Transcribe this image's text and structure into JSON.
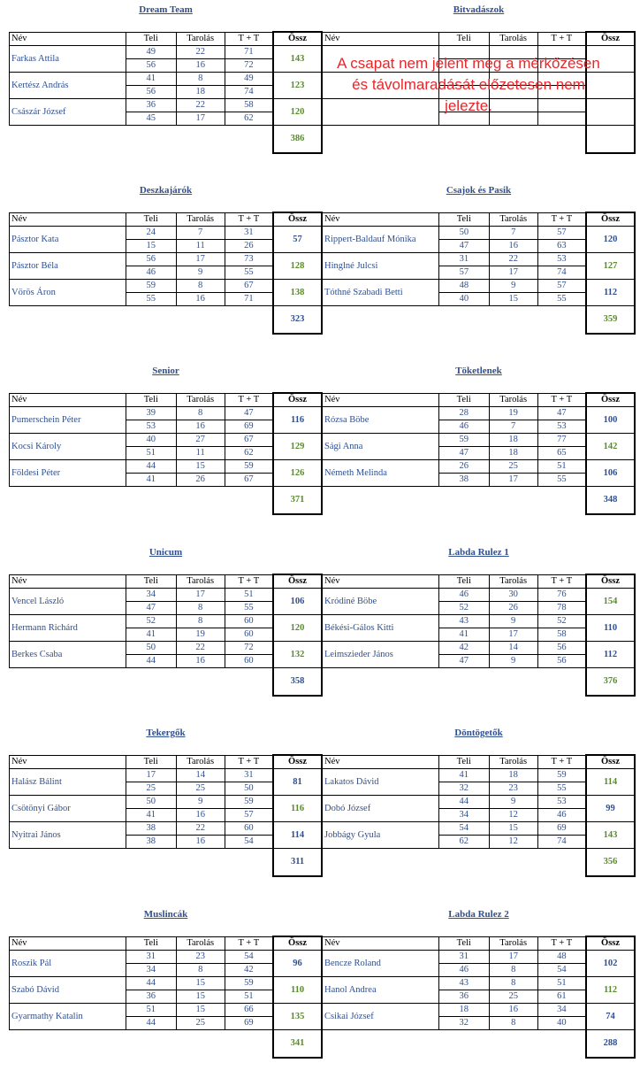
{
  "headers": {
    "name": "Név",
    "teli": "Teli",
    "tarolas": "Tarolás",
    "tt": "T + T",
    "ossz": "Össz"
  },
  "absent_notice": "A csapat nem jelent meg a mérkőzésen és távolmaradását előzetesen nem jelezte.",
  "teams": [
    {
      "title": "Dream Team",
      "total": "386",
      "total_color": "green",
      "players": [
        {
          "name": "Farkas Attila",
          "rows": [
            [
              "49",
              "22",
              "71"
            ],
            [
              "56",
              "16",
              "72"
            ]
          ],
          "ossz": "143",
          "color": "green"
        },
        {
          "name": "Kertész András",
          "rows": [
            [
              "41",
              "8",
              "49"
            ],
            [
              "56",
              "18",
              "74"
            ]
          ],
          "ossz": "123",
          "color": "green"
        },
        {
          "name": "Császár József",
          "rows": [
            [
              "36",
              "22",
              "58"
            ],
            [
              "45",
              "17",
              "62"
            ]
          ],
          "ossz": "120",
          "color": "green"
        }
      ]
    },
    {
      "title": "Bitvadászok",
      "total": "",
      "total_color": "green",
      "absent": true,
      "players": [
        {
          "name": "",
          "rows": [
            [
              "",
              "",
              ""
            ],
            [
              "",
              "",
              ""
            ]
          ],
          "ossz": "",
          "color": "green"
        },
        {
          "name": "",
          "rows": [
            [
              "",
              "",
              ""
            ],
            [
              "",
              "",
              ""
            ]
          ],
          "ossz": "",
          "color": "green"
        },
        {
          "name": "",
          "rows": [
            [
              "",
              "",
              ""
            ],
            [
              "",
              "",
              ""
            ]
          ],
          "ossz": "",
          "color": "green"
        }
      ]
    },
    {
      "title": "Deszkajárók",
      "total": "323",
      "total_color": "blue",
      "players": [
        {
          "name": "Pásztor Kata",
          "rows": [
            [
              "24",
              "7",
              "31"
            ],
            [
              "15",
              "11",
              "26"
            ]
          ],
          "ossz": "57",
          "color": "blue"
        },
        {
          "name": "Pásztor Béla",
          "rows": [
            [
              "56",
              "17",
              "73"
            ],
            [
              "46",
              "9",
              "55"
            ]
          ],
          "ossz": "128",
          "color": "green"
        },
        {
          "name": "Vörös Áron",
          "rows": [
            [
              "59",
              "8",
              "67"
            ],
            [
              "55",
              "16",
              "71"
            ]
          ],
          "ossz": "138",
          "color": "green"
        }
      ]
    },
    {
      "title": "Csajok és Pasik",
      "total": "359",
      "total_color": "green",
      "players": [
        {
          "name": "Rippert-Baldauf Mónika",
          "rows": [
            [
              "50",
              "7",
              "57"
            ],
            [
              "47",
              "16",
              "63"
            ]
          ],
          "ossz": "120",
          "color": "blue"
        },
        {
          "name": "Hinglné Julcsi",
          "rows": [
            [
              "31",
              "22",
              "53"
            ],
            [
              "57",
              "17",
              "74"
            ]
          ],
          "ossz": "127",
          "color": "green"
        },
        {
          "name": "Tóthné Szabadi Betti",
          "rows": [
            [
              "48",
              "9",
              "57"
            ],
            [
              "40",
              "15",
              "55"
            ]
          ],
          "ossz": "112",
          "color": "blue"
        }
      ]
    },
    {
      "title": "Senior",
      "total": "371",
      "total_color": "green",
      "players": [
        {
          "name": "Pumerschein Péter",
          "rows": [
            [
              "39",
              "8",
              "47"
            ],
            [
              "53",
              "16",
              "69"
            ]
          ],
          "ossz": "116",
          "color": "blue"
        },
        {
          "name": "Kocsi Károly",
          "rows": [
            [
              "40",
              "27",
              "67"
            ],
            [
              "51",
              "11",
              "62"
            ]
          ],
          "ossz": "129",
          "color": "green"
        },
        {
          "name": "Földesi Péter",
          "rows": [
            [
              "44",
              "15",
              "59"
            ],
            [
              "41",
              "26",
              "67"
            ]
          ],
          "ossz": "126",
          "color": "green"
        }
      ]
    },
    {
      "title": "Töketlenek",
      "total": "348",
      "total_color": "blue",
      "players": [
        {
          "name": "Rózsa Böbe",
          "rows": [
            [
              "28",
              "19",
              "47"
            ],
            [
              "46",
              "7",
              "53"
            ]
          ],
          "ossz": "100",
          "color": "blue"
        },
        {
          "name": "Sági Anna",
          "rows": [
            [
              "59",
              "18",
              "77"
            ],
            [
              "47",
              "18",
              "65"
            ]
          ],
          "ossz": "142",
          "color": "green"
        },
        {
          "name": "Németh Melinda",
          "rows": [
            [
              "26",
              "25",
              "51"
            ],
            [
              "38",
              "17",
              "55"
            ]
          ],
          "ossz": "106",
          "color": "blue"
        }
      ]
    },
    {
      "title": "Unicum",
      "total": "358",
      "total_color": "blue",
      "players": [
        {
          "name": "Vencel László",
          "rows": [
            [
              "34",
              "17",
              "51"
            ],
            [
              "47",
              "8",
              "55"
            ]
          ],
          "ossz": "106",
          "color": "blue"
        },
        {
          "name": "Hermann Richárd",
          "rows": [
            [
              "52",
              "8",
              "60"
            ],
            [
              "41",
              "19",
              "60"
            ]
          ],
          "ossz": "120",
          "color": "green"
        },
        {
          "name": "Berkes Csaba",
          "rows": [
            [
              "50",
              "22",
              "72"
            ],
            [
              "44",
              "16",
              "60"
            ]
          ],
          "ossz": "132",
          "color": "green"
        }
      ]
    },
    {
      "title": "Labda Rulez 1",
      "total": "376",
      "total_color": "green",
      "players": [
        {
          "name": "Kródiné Böbe",
          "rows": [
            [
              "46",
              "30",
              "76"
            ],
            [
              "52",
              "26",
              "78"
            ]
          ],
          "ossz": "154",
          "color": "green"
        },
        {
          "name": "Békési-Gálos Kitti",
          "rows": [
            [
              "43",
              "9",
              "52"
            ],
            [
              "41",
              "17",
              "58"
            ]
          ],
          "ossz": "110",
          "color": "blue"
        },
        {
          "name": "Leimszieder János",
          "rows": [
            [
              "42",
              "14",
              "56"
            ],
            [
              "47",
              "9",
              "56"
            ]
          ],
          "ossz": "112",
          "color": "blue"
        }
      ]
    },
    {
      "title": "Tekergők",
      "total": "311",
      "total_color": "blue",
      "players": [
        {
          "name": "Halász Bálint",
          "rows": [
            [
              "17",
              "14",
              "31"
            ],
            [
              "25",
              "25",
              "50"
            ]
          ],
          "ossz": "81",
          "color": "blue"
        },
        {
          "name": "Csötönyi Gábor",
          "rows": [
            [
              "50",
              "9",
              "59"
            ],
            [
              "41",
              "16",
              "57"
            ]
          ],
          "ossz": "116",
          "color": "green"
        },
        {
          "name": "Nyitrai János",
          "rows": [
            [
              "38",
              "22",
              "60"
            ],
            [
              "38",
              "16",
              "54"
            ]
          ],
          "ossz": "114",
          "color": "blue"
        }
      ]
    },
    {
      "title": "Döntögetők",
      "total": "356",
      "total_color": "green",
      "players": [
        {
          "name": "Lakatos Dávid",
          "rows": [
            [
              "41",
              "18",
              "59"
            ],
            [
              "32",
              "23",
              "55"
            ]
          ],
          "ossz": "114",
          "color": "green"
        },
        {
          "name": "Dobó József",
          "rows": [
            [
              "44",
              "9",
              "53"
            ],
            [
              "34",
              "12",
              "46"
            ]
          ],
          "ossz": "99",
          "color": "blue"
        },
        {
          "name": "Jobbágy Gyula",
          "rows": [
            [
              "54",
              "15",
              "69"
            ],
            [
              "62",
              "12",
              "74"
            ]
          ],
          "ossz": "143",
          "color": "green"
        }
      ]
    },
    {
      "title": "Muslincák",
      "total": "341",
      "total_color": "green",
      "players": [
        {
          "name": "Roszik Pál",
          "rows": [
            [
              "31",
              "23",
              "54"
            ],
            [
              "34",
              "8",
              "42"
            ]
          ],
          "ossz": "96",
          "color": "blue"
        },
        {
          "name": "Szabó Dávid",
          "rows": [
            [
              "44",
              "15",
              "59"
            ],
            [
              "36",
              "15",
              "51"
            ]
          ],
          "ossz": "110",
          "color": "green"
        },
        {
          "name": "Gyarmathy Katalin",
          "rows": [
            [
              "51",
              "15",
              "66"
            ],
            [
              "44",
              "25",
              "69"
            ]
          ],
          "ossz": "135",
          "color": "green"
        }
      ]
    },
    {
      "title": "Labda Rulez 2",
      "total": "288",
      "total_color": "blue",
      "players": [
        {
          "name": "Bencze Roland",
          "rows": [
            [
              "31",
              "17",
              "48"
            ],
            [
              "46",
              "8",
              "54"
            ]
          ],
          "ossz": "102",
          "color": "blue"
        },
        {
          "name": "Hanol Andrea",
          "rows": [
            [
              "43",
              "8",
              "51"
            ],
            [
              "36",
              "25",
              "61"
            ]
          ],
          "ossz": "112",
          "color": "green"
        },
        {
          "name": "Csikai József",
          "rows": [
            [
              "18",
              "16",
              "34"
            ],
            [
              "32",
              "8",
              "40"
            ]
          ],
          "ossz": "74",
          "color": "blue"
        }
      ]
    }
  ]
}
